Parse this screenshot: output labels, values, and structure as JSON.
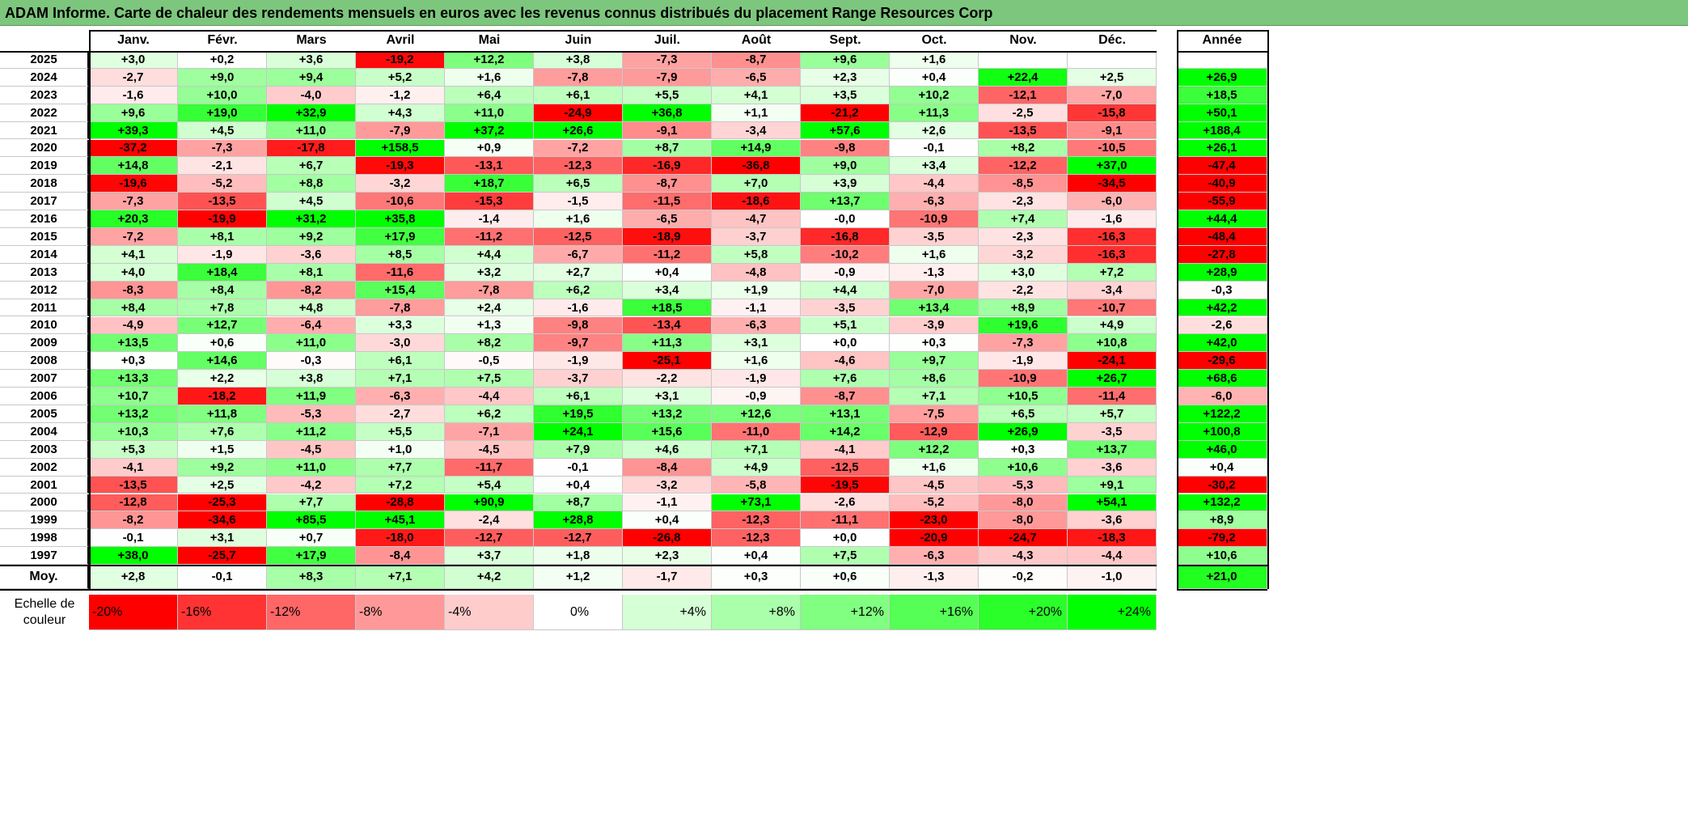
{
  "title": "ADAM Informe. Carte de chaleur des rendements mensuels en euros avec les revenus connus distribués du placement Range Resources Corp",
  "chart_data": {
    "type": "heatmap",
    "title": "ADAM Informe. Carte de chaleur des rendements mensuels en euros avec les revenus connus distribués du placement Range Resources Corp",
    "months": [
      "Janv.",
      "Févr.",
      "Mars",
      "Avril",
      "Mai",
      "Juin",
      "Juil.",
      "Août",
      "Sept.",
      "Oct.",
      "Nov.",
      "Déc."
    ],
    "year_header": "Année",
    "rows": [
      {
        "label": "2025",
        "values": [
          "+3,0",
          "+0,2",
          "+3,6",
          "-19,2",
          "+12,2",
          "+3,8",
          "-7,3",
          "-8,7",
          "+9,6",
          "+1,6",
          "",
          ""
        ],
        "year": ""
      },
      {
        "label": "2024",
        "values": [
          "-2,7",
          "+9,0",
          "+9,4",
          "+5,2",
          "+1,6",
          "-7,8",
          "-7,9",
          "-6,5",
          "+2,3",
          "+0,4",
          "+22,4",
          "+2,5"
        ],
        "year": "+26,9"
      },
      {
        "label": "2023",
        "values": [
          "-1,6",
          "+10,0",
          "-4,0",
          "-1,2",
          "+6,4",
          "+6,1",
          "+5,5",
          "+4,1",
          "+3,5",
          "+10,2",
          "-12,1",
          "-7,0"
        ],
        "year": "+18,5"
      },
      {
        "label": "2022",
        "values": [
          "+9,6",
          "+19,0",
          "+32,9",
          "+4,3",
          "+11,0",
          "-24,9",
          "+36,8",
          "+1,1",
          "-21,2",
          "+11,3",
          "-2,5",
          "-15,8"
        ],
        "year": "+50,1"
      },
      {
        "label": "2021",
        "values": [
          "+39,3",
          "+4,5",
          "+11,0",
          "-7,9",
          "+37,2",
          "+26,6",
          "-9,1",
          "-3,4",
          "+57,6",
          "+2,6",
          "-13,5",
          "-9,1"
        ],
        "year": "+188,4"
      },
      {
        "label": "2020",
        "values": [
          "-37,2",
          "-7,3",
          "-17,8",
          "+158,5",
          "+0,9",
          "-7,2",
          "+8,7",
          "+14,9",
          "-9,8",
          "-0,1",
          "+8,2",
          "-10,5"
        ],
        "year": "+26,1"
      },
      {
        "label": "2019",
        "values": [
          "+14,8",
          "-2,1",
          "+6,7",
          "-19,3",
          "-13,1",
          "-12,3",
          "-16,9",
          "-36,8",
          "+9,0",
          "+3,4",
          "-12,2",
          "+37,0"
        ],
        "year": "-47,4"
      },
      {
        "label": "2018",
        "values": [
          "-19,6",
          "-5,2",
          "+8,8",
          "-3,2",
          "+18,7",
          "+6,5",
          "-8,7",
          "+7,0",
          "+3,9",
          "-4,4",
          "-8,5",
          "-34,5"
        ],
        "year": "-40,9"
      },
      {
        "label": "2017",
        "values": [
          "-7,3",
          "-13,5",
          "+4,5",
          "-10,6",
          "-15,3",
          "-1,5",
          "-11,5",
          "-18,6",
          "+13,7",
          "-6,3",
          "-2,3",
          "-6,0"
        ],
        "year": "-55,9"
      },
      {
        "label": "2016",
        "values": [
          "+20,3",
          "-19,9",
          "+31,2",
          "+35,8",
          "-1,4",
          "+1,6",
          "-6,5",
          "-4,7",
          "-0,0",
          "-10,9",
          "+7,4",
          "-1,6"
        ],
        "year": "+44,4"
      },
      {
        "label": "2015",
        "values": [
          "-7,2",
          "+8,1",
          "+9,2",
          "+17,9",
          "-11,2",
          "-12,5",
          "-18,9",
          "-3,7",
          "-16,8",
          "-3,5",
          "-2,3",
          "-16,3"
        ],
        "year": "-48,4"
      },
      {
        "label": "2014",
        "values": [
          "+4,1",
          "-1,9",
          "-3,6",
          "+8,5",
          "+4,4",
          "-6,7",
          "-11,2",
          "+5,8",
          "-10,2",
          "+1,6",
          "-3,2",
          "-16,3"
        ],
        "year": "-27,8"
      },
      {
        "label": "2013",
        "values": [
          "+4,0",
          "+18,4",
          "+8,1",
          "-11,6",
          "+3,2",
          "+2,7",
          "+0,4",
          "-4,8",
          "-0,9",
          "-1,3",
          "+3,0",
          "+7,2"
        ],
        "year": "+28,9"
      },
      {
        "label": "2012",
        "values": [
          "-8,3",
          "+8,4",
          "-8,2",
          "+15,4",
          "-7,8",
          "+6,2",
          "+3,4",
          "+1,9",
          "+4,4",
          "-7,0",
          "-2,2",
          "-3,4"
        ],
        "year": "-0,3"
      },
      {
        "label": "2011",
        "values": [
          "+8,4",
          "+7,8",
          "+4,8",
          "-7,8",
          "+2,4",
          "-1,6",
          "+18,5",
          "-1,1",
          "-3,5",
          "+13,4",
          "+8,9",
          "-10,7"
        ],
        "year": "+42,2"
      },
      {
        "label": "2010",
        "values": [
          "-4,9",
          "+12,7",
          "-6,4",
          "+3,3",
          "+1,3",
          "-9,8",
          "-13,4",
          "-6,3",
          "+5,1",
          "-3,9",
          "+19,6",
          "+4,9"
        ],
        "year": "-2,6"
      },
      {
        "label": "2009",
        "values": [
          "+13,5",
          "+0,6",
          "+11,0",
          "-3,0",
          "+8,2",
          "-9,7",
          "+11,3",
          "+3,1",
          "+0,0",
          "+0,3",
          "-7,3",
          "+10,8"
        ],
        "year": "+42,0"
      },
      {
        "label": "2008",
        "values": [
          "+0,3",
          "+14,6",
          "-0,3",
          "+6,1",
          "-0,5",
          "-1,9",
          "-25,1",
          "+1,6",
          "-4,6",
          "+9,7",
          "-1,9",
          "-24,1"
        ],
        "year": "-29,6"
      },
      {
        "label": "2007",
        "values": [
          "+13,3",
          "+2,2",
          "+3,8",
          "+7,1",
          "+7,5",
          "-3,7",
          "-2,2",
          "-1,9",
          "+7,6",
          "+8,6",
          "-10,9",
          "+26,7"
        ],
        "year": "+68,6"
      },
      {
        "label": "2006",
        "values": [
          "+10,7",
          "-18,2",
          "+11,9",
          "-6,3",
          "-4,4",
          "+6,1",
          "+3,1",
          "-0,9",
          "-8,7",
          "+7,1",
          "+10,5",
          "-11,4"
        ],
        "year": "-6,0"
      },
      {
        "label": "2005",
        "values": [
          "+13,2",
          "+11,8",
          "-5,3",
          "-2,7",
          "+6,2",
          "+19,5",
          "+13,2",
          "+12,6",
          "+13,1",
          "-7,5",
          "+6,5",
          "+5,7"
        ],
        "year": "+122,2"
      },
      {
        "label": "2004",
        "values": [
          "+10,3",
          "+7,6",
          "+11,2",
          "+5,5",
          "-7,1",
          "+24,1",
          "+15,6",
          "-11,0",
          "+14,2",
          "-12,9",
          "+26,9",
          "-3,5"
        ],
        "year": "+100,8"
      },
      {
        "label": "2003",
        "values": [
          "+5,3",
          "+1,5",
          "-4,5",
          "+1,0",
          "-4,5",
          "+7,9",
          "+4,6",
          "+7,1",
          "-4,1",
          "+12,2",
          "+0,3",
          "+13,7"
        ],
        "year": "+46,0"
      },
      {
        "label": "2002",
        "values": [
          "-4,1",
          "+9,2",
          "+11,0",
          "+7,7",
          "-11,7",
          "-0,1",
          "-8,4",
          "+4,9",
          "-12,5",
          "+1,6",
          "+10,6",
          "-3,6"
        ],
        "year": "+0,4"
      },
      {
        "label": "2001",
        "values": [
          "-13,5",
          "+2,5",
          "-4,2",
          "+7,2",
          "+5,4",
          "+0,4",
          "-3,2",
          "-5,8",
          "-19,5",
          "-4,5",
          "-5,3",
          "+9,1"
        ],
        "year": "-30,2"
      },
      {
        "label": "2000",
        "values": [
          "-12,8",
          "-25,3",
          "+7,7",
          "-28,8",
          "+90,9",
          "+8,7",
          "-1,1",
          "+73,1",
          "-2,6",
          "-5,2",
          "-8,0",
          "+54,1"
        ],
        "year": "+132,2"
      },
      {
        "label": "1999",
        "values": [
          "-8,2",
          "-34,6",
          "+85,5",
          "+45,1",
          "-2,4",
          "+28,8",
          "+0,4",
          "-12,3",
          "-11,1",
          "-23,0",
          "-8,0",
          "-3,6"
        ],
        "year": "+8,9"
      },
      {
        "label": "1998",
        "values": [
          "-0,1",
          "+3,1",
          "+0,7",
          "-18,0",
          "-12,7",
          "-12,7",
          "-26,8",
          "-12,3",
          "+0,0",
          "-20,9",
          "-24,7",
          "-18,3"
        ],
        "year": "-79,2"
      },
      {
        "label": "1997",
        "values": [
          "+38,0",
          "-25,7",
          "+17,9",
          "-8,4",
          "+3,7",
          "+1,8",
          "+2,3",
          "+0,4",
          "+7,5",
          "-6,3",
          "-4,3",
          "-4,4"
        ],
        "year": "+10,6"
      }
    ],
    "average": {
      "label": "Moy.",
      "values": [
        "+2,8",
        "-0,1",
        "+8,3",
        "+7,1",
        "+4,2",
        "+1,2",
        "-1,7",
        "+0,3",
        "+0,6",
        "-1,3",
        "-0,2",
        "-1,0"
      ],
      "year": "+21,0"
    },
    "scale": {
      "label": "Echelle de couleur",
      "steps": [
        "-20%",
        "-16%",
        "-12%",
        "-8%",
        "-4%",
        "0%",
        "+4%",
        "+8%",
        "+12%",
        "+16%",
        "+20%",
        "+24%"
      ]
    },
    "colors": {
      "negative": "#ff0000",
      "positive": "#00ff00",
      "neutral": "#ffffff",
      "header": "#7dc67d"
    }
  }
}
